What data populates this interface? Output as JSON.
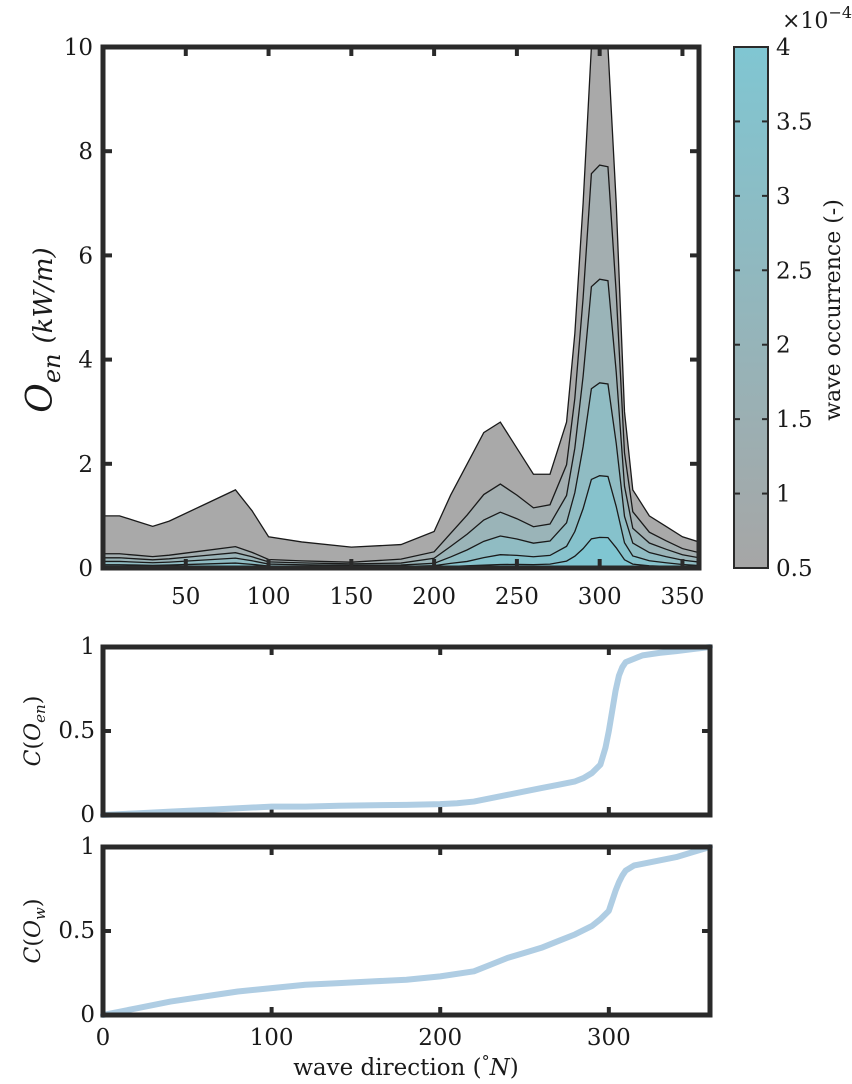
{
  "colors": {
    "frame": "#2a2a2a",
    "occurrence_low": "#a6a6a6",
    "occurrence_high": "#80c6d2",
    "cdf_line": "#afcde3",
    "contour_line": "#1a1a1a"
  },
  "chart_data": [
    {
      "type": "heatmap",
      "xlim": [
        0,
        360
      ],
      "ylim": [
        0,
        10
      ],
      "x_ticks": [
        50,
        100,
        150,
        200,
        250,
        300,
        350
      ],
      "y_ticks": [
        0,
        2,
        4,
        6,
        8,
        10
      ],
      "x_tick_labels": [
        "50",
        "100",
        "150",
        "200",
        "250",
        "300",
        "350"
      ],
      "y_tick_labels": [
        "0",
        "2",
        "4",
        "6",
        "8",
        "10"
      ],
      "ylabel_main": "O",
      "ylabel_sub": "en",
      "ylabel_unit": "(kW/m)",
      "colorbar": {
        "label": "wave occurrence (-)",
        "exponent_base": "×10",
        "exponent_power": "−4",
        "range": [
          0.5,
          4
        ],
        "ticks": [
          0.5,
          1,
          1.5,
          2,
          2.5,
          3,
          3.5,
          4
        ],
        "tick_labels": [
          "0.5",
          "1",
          "1.5",
          "2",
          "2.5",
          "3",
          "3.5",
          "4"
        ]
      },
      "band_envelope": {
        "x": [
          0,
          10,
          20,
          30,
          40,
          60,
          80,
          90,
          100,
          120,
          150,
          180,
          200,
          210,
          220,
          230,
          240,
          250,
          260,
          270,
          280,
          285,
          290,
          295,
          300,
          305,
          310,
          315,
          320,
          330,
          340,
          350,
          360
        ],
        "y": [
          1.0,
          1.0,
          0.9,
          0.8,
          0.9,
          1.2,
          1.5,
          1.1,
          0.6,
          0.5,
          0.4,
          0.45,
          0.7,
          1.4,
          2.0,
          2.6,
          2.8,
          2.3,
          1.8,
          1.8,
          2.8,
          4.5,
          7.0,
          10.0,
          10.0,
          10.0,
          7.0,
          3.0,
          1.5,
          1.0,
          0.8,
          0.6,
          0.5
        ]
      },
      "peak": {
        "x": 302,
        "y": 10
      }
    },
    {
      "type": "line",
      "xlim": [
        0,
        360
      ],
      "ylim": [
        0,
        1
      ],
      "y_ticks": [
        0,
        0.5,
        1
      ],
      "y_tick_labels": [
        "0",
        "0.5",
        "1"
      ],
      "ylabel_func": "C",
      "ylabel_main": "O",
      "ylabel_sub": "en",
      "series": [
        {
          "x": [
            0,
            20,
            40,
            60,
            80,
            100,
            120,
            140,
            160,
            180,
            200,
            210,
            220,
            230,
            240,
            250,
            260,
            270,
            280,
            285,
            290,
            295,
            298,
            300,
            302,
            304,
            306,
            308,
            310,
            315,
            320,
            330,
            340,
            350,
            360
          ],
          "y": [
            0,
            0.01,
            0.02,
            0.03,
            0.04,
            0.05,
            0.05,
            0.055,
            0.058,
            0.06,
            0.065,
            0.07,
            0.08,
            0.1,
            0.12,
            0.14,
            0.16,
            0.18,
            0.2,
            0.22,
            0.25,
            0.3,
            0.4,
            0.5,
            0.62,
            0.74,
            0.83,
            0.88,
            0.91,
            0.93,
            0.95,
            0.965,
            0.975,
            0.988,
            1
          ]
        }
      ]
    },
    {
      "type": "line",
      "xlim": [
        0,
        360
      ],
      "ylim": [
        0,
        1
      ],
      "x_ticks": [
        0,
        100,
        200,
        300
      ],
      "x_tick_labels": [
        "0",
        "100",
        "200",
        "300"
      ],
      "y_ticks": [
        0,
        0.5,
        1
      ],
      "y_tick_labels": [
        "0",
        "0.5",
        "1"
      ],
      "ylabel_func": "C",
      "ylabel_main": "O",
      "ylabel_sub": "w",
      "xlabel_text": "wave direction (",
      "xlabel_degree": "°",
      "xlabel_unit": "N",
      "xlabel_close": ")",
      "series": [
        {
          "x": [
            0,
            10,
            20,
            40,
            60,
            80,
            100,
            120,
            140,
            160,
            180,
            200,
            220,
            230,
            240,
            250,
            260,
            270,
            280,
            290,
            295,
            300,
            302,
            304,
            306,
            308,
            310,
            315,
            320,
            330,
            340,
            350,
            360
          ],
          "y": [
            0,
            0.02,
            0.04,
            0.08,
            0.11,
            0.14,
            0.16,
            0.18,
            0.19,
            0.2,
            0.21,
            0.23,
            0.26,
            0.3,
            0.34,
            0.37,
            0.4,
            0.44,
            0.48,
            0.53,
            0.57,
            0.62,
            0.68,
            0.74,
            0.79,
            0.83,
            0.86,
            0.89,
            0.9,
            0.92,
            0.94,
            0.97,
            1
          ]
        }
      ]
    }
  ]
}
